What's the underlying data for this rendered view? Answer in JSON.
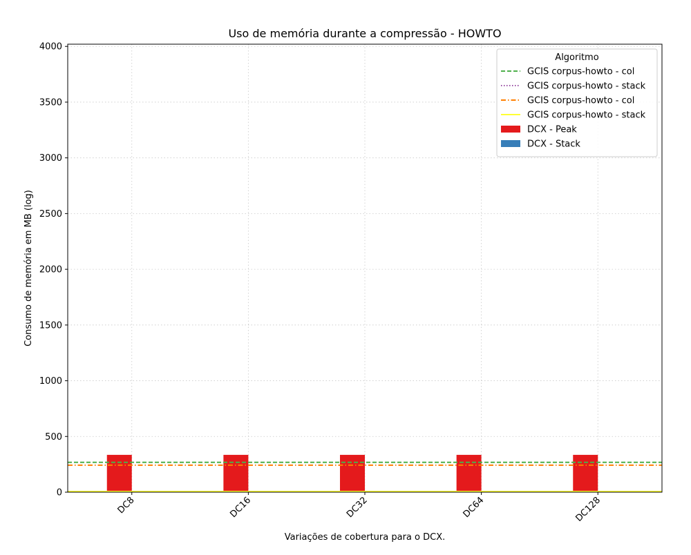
{
  "chart_data": {
    "type": "bar",
    "title": "Uso de memória durante a compressão -  HOWTO",
    "xlabel": "Variações de cobertura para o DCX.",
    "ylabel": "Consumo de memória em MB (log)",
    "categories": [
      "DC8",
      "DC16",
      "DC32",
      "DC64",
      "DC128"
    ],
    "ylim": [
      0,
      4020
    ],
    "yticks": [
      0,
      500,
      1000,
      1500,
      2000,
      2500,
      3000,
      3500,
      4000
    ],
    "grid": true,
    "legend": {
      "title": "Algoritmo",
      "placement": "top-right"
    },
    "series": [
      {
        "name": "DCX - Peak",
        "kind": "bar",
        "color": "#e41a1c",
        "values": [
          335,
          335,
          335,
          335,
          335
        ]
      },
      {
        "name": "DCX - Stack",
        "kind": "bar",
        "color": "#377eb8",
        "values": [
          5,
          5,
          5,
          5,
          5
        ]
      }
    ],
    "reference_lines": [
      {
        "name": "GCIS corpus-howto - col",
        "value": 268,
        "color": "#4daf4a",
        "style": "dashed"
      },
      {
        "name": "GCIS corpus-howto - stack",
        "value": 6,
        "color": "#984ea3",
        "style": "dotted"
      },
      {
        "name": "GCIS corpus-howto - col",
        "value": 242,
        "color": "#ff7f00",
        "style": "dashdot"
      },
      {
        "name": "GCIS corpus-howto - stack",
        "value": 6,
        "color": "#ffff33",
        "style": "solid"
      }
    ]
  }
}
